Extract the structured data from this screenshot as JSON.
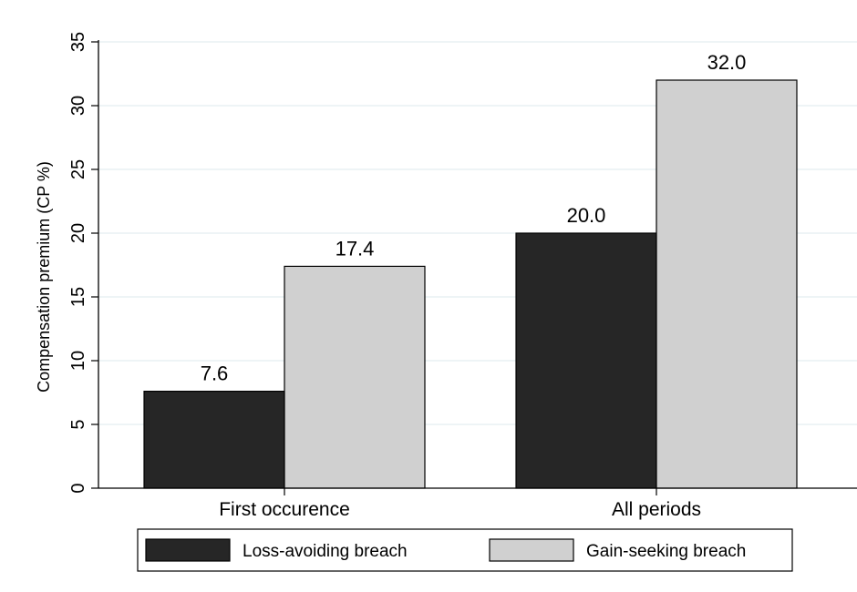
{
  "chart_data": {
    "type": "bar",
    "categories": [
      "First occurence",
      "All periods"
    ],
    "series": [
      {
        "name": "Loss-avoiding breach",
        "values": [
          7.6,
          20.0
        ],
        "color": "#262626"
      },
      {
        "name": "Gain-seeking breach",
        "values": [
          17.4,
          32.0
        ],
        "color": "#d0d0d0"
      }
    ],
    "data_labels": [
      [
        "7.6",
        "20.0"
      ],
      [
        "17.4",
        "32.0"
      ]
    ],
    "title": "",
    "xlabel": "",
    "ylabel": "Compensation premium (CP %)",
    "ylim": [
      0,
      36
    ],
    "yticks": [
      0,
      5,
      10,
      15,
      20,
      25,
      30,
      35
    ],
    "ytick_labels": [
      "0",
      "5",
      "10",
      "15",
      "20",
      "25",
      "30",
      "35"
    ],
    "grid": true,
    "gridline_color": "#e4eef1",
    "legend_position": "bottom"
  }
}
